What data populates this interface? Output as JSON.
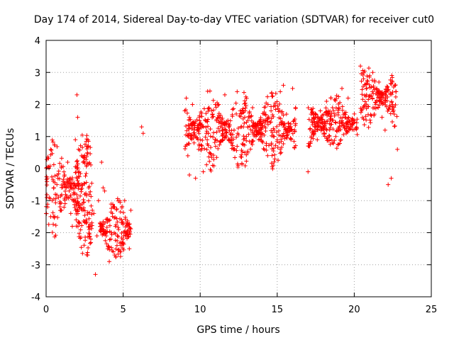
{
  "chart_data": {
    "type": "scatter",
    "title": "Day 174 of 2014, Sidereal Day-to-day VTEC variation (SDTVAR) for receiver cut0",
    "xlabel": "GPS time / hours",
    "ylabel": "SDTVAR / TECUs",
    "xlim": [
      0,
      25
    ],
    "ylim": [
      -4,
      4
    ],
    "xticks": [
      0,
      5,
      10,
      15,
      20,
      25
    ],
    "yticks": [
      -4,
      -3,
      -2,
      -1,
      0,
      1,
      2,
      3,
      4
    ],
    "grid": true,
    "marker": "+",
    "color": "#ff0000",
    "series": [
      {
        "name": "SDTVAR",
        "description_points": "approximate values read from plot",
        "x": [
          0.0,
          0.1,
          0.2,
          0.3,
          0.4,
          0.5,
          0.6,
          0.7,
          0.8,
          0.9,
          1.0,
          1.1,
          1.2,
          1.3,
          1.4,
          1.5,
          1.6,
          1.7,
          1.8,
          1.9,
          2.0,
          2.05,
          2.1,
          2.15,
          2.2,
          2.3,
          2.4,
          2.5,
          2.6,
          2.7,
          2.8,
          2.9,
          3.0,
          3.1,
          3.2,
          3.3,
          3.4,
          3.5,
          3.6,
          3.7,
          3.8,
          3.9,
          4.0,
          4.1,
          4.2,
          4.3,
          4.4,
          4.5,
          4.6,
          4.7,
          4.8,
          4.9,
          5.0,
          5.1,
          5.2,
          5.3,
          5.4,
          5.5,
          6.2,
          6.3,
          9.0,
          9.1,
          9.2,
          9.3,
          9.4,
          9.5,
          9.6,
          9.7,
          9.8,
          9.9,
          10.0,
          10.2,
          10.4,
          10.6,
          10.8,
          11.0,
          11.2,
          11.4,
          11.6,
          11.8,
          12.0,
          12.2,
          12.4,
          12.6,
          12.8,
          13.0,
          13.2,
          13.4,
          13.6,
          13.8,
          14.0,
          14.2,
          14.4,
          14.6,
          14.8,
          15.0,
          15.2,
          15.4,
          15.6,
          15.8,
          16.0,
          16.2,
          17.0,
          17.1,
          17.2,
          17.4,
          17.6,
          17.8,
          18.0,
          18.2,
          18.4,
          18.6,
          18.8,
          19.0,
          19.2,
          19.4,
          19.6,
          19.8,
          20.0,
          20.4,
          20.6,
          20.8,
          21.0,
          21.2,
          21.4,
          21.6,
          21.8,
          22.0,
          22.2,
          22.4,
          22.6,
          22.8
        ],
        "y": [
          -1.4,
          -1.2,
          -0.9,
          -1.5,
          -1.0,
          -0.6,
          -0.8,
          -0.5,
          -0.9,
          -1.1,
          -1.3,
          -0.4,
          -0.2,
          -0.6,
          0.2,
          -0.7,
          -1.4,
          -1.8,
          -0.8,
          0.9,
          2.3,
          1.6,
          0.6,
          -0.1,
          -1.2,
          0.4,
          0.2,
          -0.8,
          -1.6,
          -2.7,
          -1.9,
          -2.2,
          -1.3,
          -1.4,
          -3.3,
          -2.1,
          -1.0,
          -1.7,
          0.2,
          -0.6,
          -0.7,
          -2.1,
          -2.5,
          -2.9,
          -2.2,
          -1.4,
          -1.2,
          -1.8,
          -2.4,
          -1.9,
          -2.6,
          -1.6,
          -2.3,
          -1.0,
          -1.7,
          -2.0,
          -2.5,
          -1.3,
          1.3,
          1.1,
          1.8,
          2.2,
          0.4,
          -0.2,
          1.4,
          2.0,
          0.8,
          -0.3,
          1.2,
          0.6,
          0.9,
          -0.1,
          1.1,
          0.5,
          1.7,
          0.9,
          2.0,
          1.4,
          2.3,
          1.5,
          0.8,
          1.2,
          2.4,
          1.8,
          1.3,
          1.0,
          1.6,
          1.9,
          1.4,
          0.9,
          1.1,
          1.5,
          2.0,
          1.8,
          1.2,
          0.9,
          2.4,
          2.6,
          1.7,
          1.3,
          2.5,
          1.4,
          -0.1,
          0.7,
          1.7,
          1.1,
          0.9,
          1.8,
          1.2,
          2.1,
          1.4,
          0.8,
          1.0,
          1.9,
          2.5,
          1.6,
          2.2,
          1.3,
          1.5,
          3.2,
          2.8,
          2.3,
          2.9,
          3.0,
          2.0,
          2.7,
          1.6,
          1.2,
          -0.5,
          -0.3,
          1.7,
          0.6
        ],
        "dense_segments": [
          {
            "x": [
              0.0,
              2.9
            ],
            "y_center": -0.6,
            "y_spread": 1.6
          },
          {
            "x": [
              1.9,
              3.0
            ],
            "y_center": -0.8,
            "y_spread": 2.0
          },
          {
            "x": [
              3.5,
              5.5
            ],
            "y_center": -1.9,
            "y_spread": 1.0
          },
          {
            "x": [
              9.0,
              16.2
            ],
            "y_center": 1.2,
            "y_spread": 1.3
          },
          {
            "x": [
              17.0,
              20.2
            ],
            "y_center": 1.4,
            "y_spread": 1.0
          },
          {
            "x": [
              20.4,
              22.8
            ],
            "y_center": 2.2,
            "y_spread": 1.0
          }
        ]
      }
    ]
  }
}
